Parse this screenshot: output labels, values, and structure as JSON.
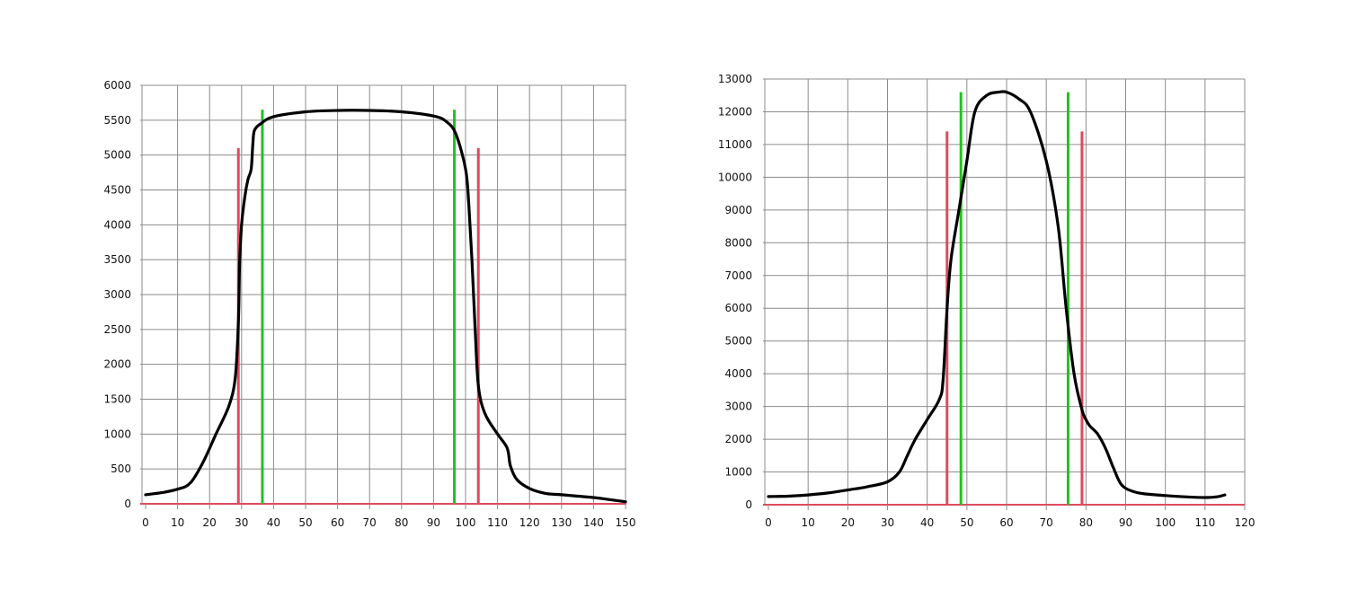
{
  "colors": {
    "curve": "#000000",
    "red_marker": "#e04a5e",
    "green_marker": "#22c21f",
    "grid": "#8c8c8c"
  },
  "chart_data": [
    {
      "type": "line",
      "title": "",
      "xlabel": "",
      "ylabel": "",
      "grid": true,
      "xlim": [
        0,
        150
      ],
      "ylim": [
        0,
        6000
      ],
      "x_ticks": [
        "0",
        "10",
        "20",
        "30",
        "40",
        "50",
        "60",
        "70",
        "80",
        "90",
        "100",
        "110",
        "120",
        "130",
        "140",
        "150"
      ],
      "y_ticks": [
        "0",
        "500",
        "1000",
        "1500",
        "2000",
        "2500",
        "3000",
        "3500",
        "4000",
        "4500",
        "5000",
        "5500",
        "6000"
      ],
      "series": [
        {
          "x": [
            0,
            5,
            10,
            14,
            18,
            22,
            26,
            28,
            29,
            29.4,
            30,
            31,
            32,
            33,
            33.5,
            34,
            36,
            40,
            50,
            60,
            70,
            80,
            90,
            94,
            97,
            100,
            101,
            102,
            103,
            104,
            106,
            110,
            113,
            114,
            116,
            120,
            125,
            130,
            140,
            145,
            150
          ],
          "y": [
            130,
            160,
            210,
            300,
            600,
            1000,
            1400,
            1800,
            2600,
            3500,
            4000,
            4400,
            4650,
            4800,
            5150,
            5350,
            5450,
            5550,
            5620,
            5640,
            5640,
            5620,
            5560,
            5480,
            5300,
            4800,
            4300,
            3500,
            2500,
            1700,
            1300,
            1000,
            800,
            550,
            350,
            220,
            150,
            130,
            90,
            60,
            30
          ]
        }
      ],
      "markers": {
        "red": [
          {
            "x": 29,
            "y": 5100
          },
          {
            "x": 104,
            "y": 5100
          }
        ],
        "green": [
          {
            "x": 36.5,
            "y": 5650
          },
          {
            "x": 96.5,
            "y": 5650
          }
        ]
      }
    },
    {
      "type": "line",
      "title": "",
      "xlabel": "",
      "ylabel": "",
      "grid": true,
      "xlim": [
        0,
        120
      ],
      "ylim": [
        0,
        13000
      ],
      "x_ticks": [
        "0",
        "10",
        "20",
        "30",
        "40",
        "50",
        "60",
        "70",
        "80",
        "90",
        "100",
        "110",
        "120"
      ],
      "y_ticks": [
        "0",
        "1000",
        "2000",
        "3000",
        "4000",
        "5000",
        "6000",
        "7000",
        "8000",
        "9000",
        "10000",
        "11000",
        "12000",
        "13000"
      ],
      "series": [
        {
          "x": [
            0,
            5,
            10,
            15,
            20,
            25,
            30,
            33,
            35,
            37,
            40,
            43,
            44,
            45,
            46,
            48,
            50,
            52,
            55,
            58,
            60,
            63,
            66,
            70,
            73,
            75,
            77,
            79,
            80,
            81,
            83,
            85,
            87,
            89,
            92,
            95,
            100,
            105,
            110,
            113,
            115
          ],
          "y": [
            250,
            260,
            300,
            360,
            450,
            550,
            700,
            1000,
            1500,
            2000,
            2600,
            3200,
            3800,
            6000,
            7500,
            9000,
            10500,
            12000,
            12500,
            12600,
            12600,
            12400,
            12000,
            10500,
            8500,
            6000,
            4000,
            2900,
            2600,
            2400,
            2150,
            1700,
            1100,
            600,
            400,
            330,
            280,
            240,
            220,
            240,
            300
          ]
        }
      ],
      "markers": {
        "red": [
          {
            "x": 45,
            "y": 11400
          },
          {
            "x": 79,
            "y": 11400
          }
        ],
        "green": [
          {
            "x": 48.5,
            "y": 12600
          },
          {
            "x": 75.5,
            "y": 12600
          }
        ]
      }
    }
  ]
}
